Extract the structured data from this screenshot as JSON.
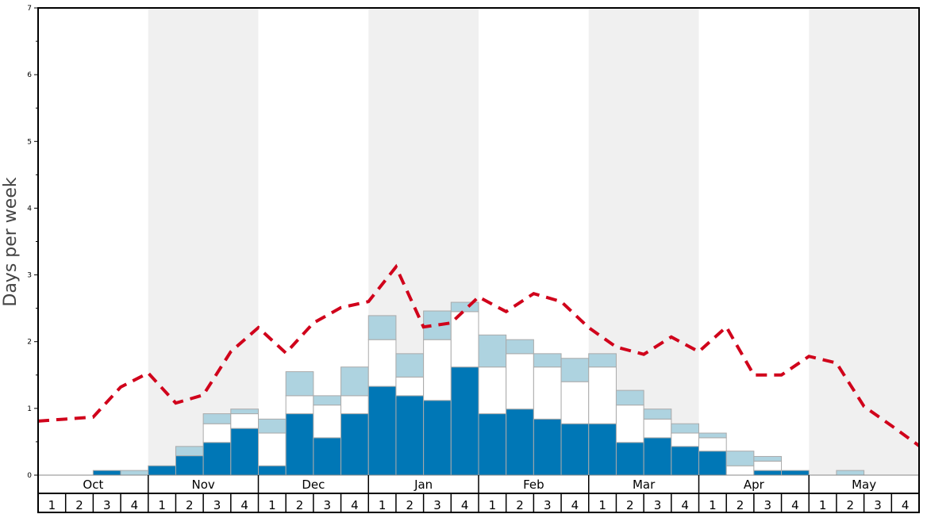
{
  "chart_data": {
    "type": "bar",
    "ylabel": "Days per week",
    "ylim": [
      0,
      7
    ],
    "yticks": [
      "0",
      "1",
      "2",
      "3",
      "4",
      "5",
      "6",
      "7"
    ],
    "months": [
      "Oct",
      "Nov",
      "Dec",
      "Jan",
      "Feb",
      "Mar",
      "Apr",
      "May"
    ],
    "week_labels": [
      "1",
      "2",
      "3",
      "4"
    ],
    "shaded_months": [
      "Nov",
      "Jan",
      "Mar",
      "May"
    ],
    "stacked_series": [
      {
        "name": "dark",
        "color": "#0077b6",
        "values": [
          0,
          0,
          0.07,
          0,
          0.14,
          0.29,
          0.49,
          0.7,
          0.14,
          0.92,
          0.56,
          0.92,
          1.33,
          1.19,
          1.12,
          1.62,
          0.92,
          0.99,
          0.84,
          0.77,
          0.77,
          0.49,
          0.56,
          0.43,
          0.36,
          0,
          0.07,
          0.07,
          0,
          0,
          0,
          0
        ]
      },
      {
        "name": "white",
        "color": "#ffffff",
        "values": [
          0,
          0,
          0,
          0,
          0,
          0,
          0.28,
          0.22,
          0.49,
          0.27,
          0.49,
          0.27,
          0.7,
          0.28,
          0.91,
          0.83,
          0.7,
          0.83,
          0.78,
          0.63,
          0.85,
          0.56,
          0.28,
          0.2,
          0.2,
          0.14,
          0.14,
          0,
          0,
          0,
          0,
          0
        ]
      },
      {
        "name": "light",
        "color": "#aed3e0",
        "values": [
          0,
          0,
          0,
          0.07,
          0,
          0.14,
          0.15,
          0.07,
          0.21,
          0.36,
          0.14,
          0.43,
          0.36,
          0.35,
          0.43,
          0.14,
          0.48,
          0.21,
          0.2,
          0.35,
          0.2,
          0.22,
          0.15,
          0.14,
          0.07,
          0.22,
          0.07,
          0,
          0,
          0.07,
          0,
          0
        ]
      }
    ],
    "line_series": {
      "name": "average",
      "color": "#d0021b",
      "style": "dashed",
      "values": [
        0.81,
        0.84,
        0.87,
        1.32,
        1.53,
        1.08,
        1.2,
        1.85,
        2.21,
        1.83,
        2.28,
        2.51,
        2.6,
        3.12,
        2.22,
        2.28,
        2.67,
        2.45,
        2.72,
        2.6,
        2.21,
        1.92,
        1.81,
        2.07,
        1.85,
        2.22,
        1.5,
        1.5,
        1.78,
        1.68,
        1.03,
        0.74,
        0.44
      ]
    }
  }
}
